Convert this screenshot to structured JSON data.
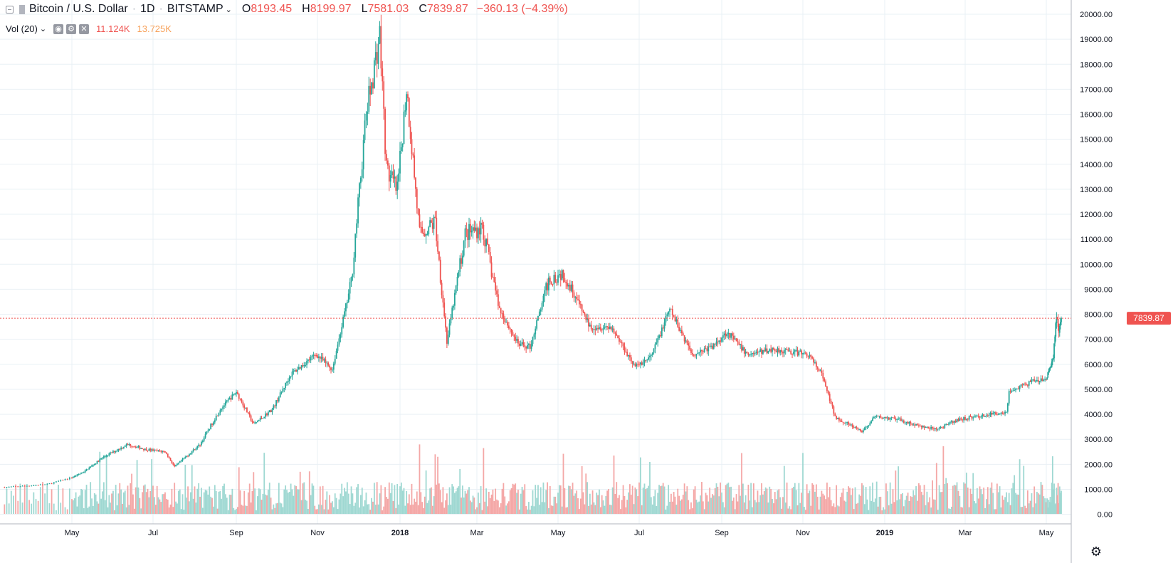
{
  "header": {
    "symbol": "Bitcoin / U.S. Dollar",
    "interval": "1D",
    "exchange": "BITSTAMP",
    "open_key": "O",
    "open": "8193.45",
    "high_key": "H",
    "high": "8199.97",
    "low_key": "L",
    "low": "7581.03",
    "close_key": "C",
    "close": "7839.87",
    "change": "−360.13 (−4.39%)"
  },
  "volume_header": {
    "label": "Vol (20)",
    "value1": "11.124K",
    "value2": "13.725K"
  },
  "colors": {
    "up": "#26a69a",
    "down": "#ef5350",
    "volume_up": "#9fd8d2",
    "volume_down": "#f4a7a6",
    "grid": "#e9f0f5",
    "price_line": "#ef5350"
  },
  "icons": {
    "collapse": "minus-square-icon",
    "symbol": "bookmark-flag-icon",
    "settings": "gear-icon"
  },
  "chart_data": {
    "type": "candlestick",
    "symbol": "Bitcoin / U.S. Dollar",
    "ylim": [
      0,
      20500
    ],
    "y_ticks": [
      "20000.00",
      "19000.00",
      "18000.00",
      "17000.00",
      "16000.00",
      "15000.00",
      "14000.00",
      "13000.00",
      "12000.00",
      "11000.00",
      "10000.00",
      "9000.00",
      "8000.00",
      "7000.00",
      "6000.00",
      "5000.00",
      "4000.00",
      "3000.00",
      "2000.00",
      "1000.00",
      "0.00"
    ],
    "x_ticks": [
      "May",
      "Jul",
      "Sep",
      "Nov",
      "2018",
      "Mar",
      "May",
      "Jul",
      "Sep",
      "Nov",
      "2019",
      "Mar",
      "May"
    ],
    "last_price_label": "7839.87",
    "grid": true,
    "price_key_points": [
      {
        "date": "2017-04-01",
        "close": 1080
      },
      {
        "date": "2017-04-20",
        "close": 1200
      },
      {
        "date": "2017-05-10",
        "close": 1700
      },
      {
        "date": "2017-05-25",
        "close": 2300
      },
      {
        "date": "2017-06-12",
        "close": 2800
      },
      {
        "date": "2017-06-25",
        "close": 2600
      },
      {
        "date": "2017-07-10",
        "close": 2500
      },
      {
        "date": "2017-07-17",
        "close": 1900
      },
      {
        "date": "2017-08-05",
        "close": 2800
      },
      {
        "date": "2017-08-20",
        "close": 4200
      },
      {
        "date": "2017-09-01",
        "close": 4900
      },
      {
        "date": "2017-09-14",
        "close": 3600
      },
      {
        "date": "2017-09-28",
        "close": 4200
      },
      {
        "date": "2017-10-12",
        "close": 5600
      },
      {
        "date": "2017-10-31",
        "close": 6400
      },
      {
        "date": "2017-11-12",
        "close": 5800
      },
      {
        "date": "2017-11-26",
        "close": 9300
      },
      {
        "date": "2017-12-07",
        "close": 16000
      },
      {
        "date": "2017-12-17",
        "close": 19200
      },
      {
        "date": "2017-12-22",
        "close": 13800
      },
      {
        "date": "2017-12-30",
        "close": 12900
      },
      {
        "date": "2018-01-06",
        "close": 17100
      },
      {
        "date": "2018-01-16",
        "close": 11200
      },
      {
        "date": "2018-01-28",
        "close": 11700
      },
      {
        "date": "2018-02-06",
        "close": 6900
      },
      {
        "date": "2018-02-20",
        "close": 11200
      },
      {
        "date": "2018-03-05",
        "close": 11500
      },
      {
        "date": "2018-03-18",
        "close": 8200
      },
      {
        "date": "2018-04-01",
        "close": 6800
      },
      {
        "date": "2018-04-10",
        "close": 6700
      },
      {
        "date": "2018-04-24",
        "close": 9400
      },
      {
        "date": "2018-05-05",
        "close": 9700
      },
      {
        "date": "2018-05-25",
        "close": 7500
      },
      {
        "date": "2018-06-10",
        "close": 7500
      },
      {
        "date": "2018-06-28",
        "close": 5900
      },
      {
        "date": "2018-07-10",
        "close": 6300
      },
      {
        "date": "2018-07-24",
        "close": 8200
      },
      {
        "date": "2018-08-10",
        "close": 6400
      },
      {
        "date": "2018-08-25",
        "close": 6700
      },
      {
        "date": "2018-09-05",
        "close": 7300
      },
      {
        "date": "2018-09-20",
        "close": 6400
      },
      {
        "date": "2018-10-10",
        "close": 6600
      },
      {
        "date": "2018-11-05",
        "close": 6400
      },
      {
        "date": "2018-11-15",
        "close": 5600
      },
      {
        "date": "2018-11-25",
        "close": 3900
      },
      {
        "date": "2018-12-15",
        "close": 3300
      },
      {
        "date": "2018-12-25",
        "close": 3900
      },
      {
        "date": "2019-01-10",
        "close": 3800
      },
      {
        "date": "2019-01-28",
        "close": 3500
      },
      {
        "date": "2019-02-08",
        "close": 3400
      },
      {
        "date": "2019-02-25",
        "close": 3800
      },
      {
        "date": "2019-03-20",
        "close": 4000
      },
      {
        "date": "2019-04-01",
        "close": 4100
      },
      {
        "date": "2019-04-03",
        "close": 4900
      },
      {
        "date": "2019-04-20",
        "close": 5300
      },
      {
        "date": "2019-05-01",
        "close": 5400
      },
      {
        "date": "2019-05-10",
        "close": 6300
      },
      {
        "date": "2019-05-14",
        "close": 8000
      },
      {
        "date": "2019-05-17",
        "close": 7300
      },
      {
        "date": "2019-05-20",
        "close": 7840
      }
    ],
    "volume_ylim": [
      0,
      20500
    ]
  }
}
